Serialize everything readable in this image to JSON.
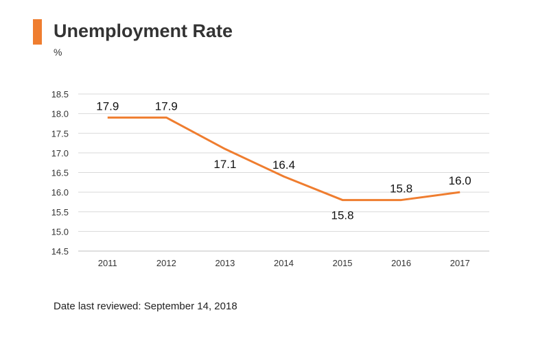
{
  "header": {
    "title": "Unemployment Rate",
    "unit": "%"
  },
  "footer": {
    "note": "Date last reviewed: September 14, 2018"
  },
  "colors": {
    "accent": "#ef7d2f",
    "line": "#ef7d2f",
    "grid": "#d9d9d9"
  },
  "chart_data": {
    "type": "line",
    "title": "Unemployment Rate",
    "ylabel": "%",
    "xlabel": "",
    "categories": [
      "2011",
      "2012",
      "2013",
      "2014",
      "2015",
      "2016",
      "2017"
    ],
    "series": [
      {
        "values": [
          17.9,
          17.9,
          17.1,
          16.4,
          15.8,
          15.8,
          16.0
        ]
      }
    ],
    "data_labels": [
      "17.9",
      "17.9",
      "17.1",
      "16.4",
      "15.8",
      "15.8",
      "16.0"
    ],
    "ylim": [
      14.5,
      18.5
    ],
    "yticks": [
      "14.5",
      "15.0",
      "15.5",
      "16.0",
      "16.5",
      "17.0",
      "17.5",
      "18.0",
      "18.5"
    ],
    "grid": true,
    "legend": "none"
  }
}
